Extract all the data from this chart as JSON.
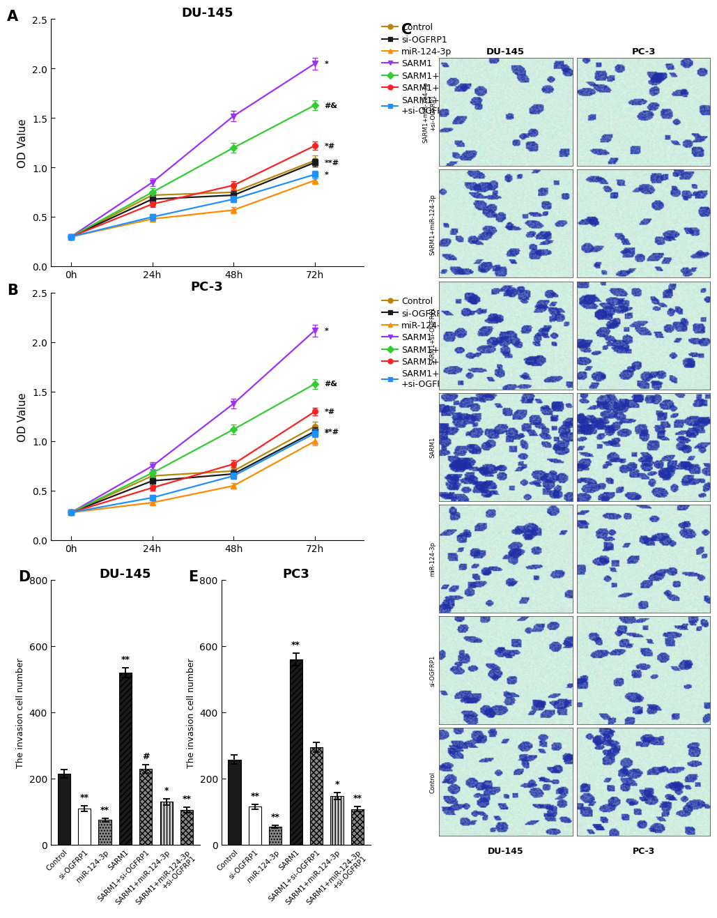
{
  "panel_A_title": "DU-145",
  "panel_B_title": "PC-3",
  "panel_D_title": "DU-145",
  "panel_E_title": "PC3",
  "timepoints": [
    0,
    1,
    2,
    3
  ],
  "time_labels": [
    "0h",
    "24h",
    "48h",
    "72h"
  ],
  "legend_labels": [
    "Control",
    "si-OGFRP1",
    "miR-124-3p",
    "SARM1",
    "SARM1+si-OGFRP1",
    "SARM1+miR-124-3p",
    "SARM1+miR-124-3p\n+si-OGFRP1"
  ],
  "series_colors": [
    "#B8860B",
    "#1a1a1a",
    "#FF8C00",
    "#9B30FF",
    "#32CD32",
    "#FF2020",
    "#1E90FF"
  ],
  "series_markers": [
    "o",
    "s",
    "^",
    "v",
    "D",
    "o",
    "s"
  ],
  "A_data": [
    [
      0.3,
      0.72,
      0.75,
      1.07
    ],
    [
      0.3,
      0.68,
      0.72,
      1.05
    ],
    [
      0.3,
      0.48,
      0.57,
      0.87
    ],
    [
      0.3,
      0.85,
      1.52,
      2.05
    ],
    [
      0.3,
      0.75,
      1.2,
      1.63
    ],
    [
      0.3,
      0.63,
      0.82,
      1.22
    ],
    [
      0.3,
      0.5,
      0.68,
      0.93
    ]
  ],
  "A_errors": [
    [
      0.02,
      0.04,
      0.04,
      0.05
    ],
    [
      0.02,
      0.04,
      0.04,
      0.04
    ],
    [
      0.02,
      0.03,
      0.03,
      0.04
    ],
    [
      0.02,
      0.04,
      0.05,
      0.06
    ],
    [
      0.02,
      0.04,
      0.05,
      0.05
    ],
    [
      0.02,
      0.03,
      0.04,
      0.04
    ],
    [
      0.02,
      0.03,
      0.03,
      0.04
    ]
  ],
  "B_data": [
    [
      0.28,
      0.65,
      0.7,
      1.15
    ],
    [
      0.28,
      0.6,
      0.67,
      1.1
    ],
    [
      0.28,
      0.38,
      0.55,
      1.0
    ],
    [
      0.28,
      0.75,
      1.38,
      2.12
    ],
    [
      0.28,
      0.68,
      1.12,
      1.58
    ],
    [
      0.28,
      0.53,
      0.77,
      1.3
    ],
    [
      0.28,
      0.43,
      0.65,
      1.08
    ]
  ],
  "B_errors": [
    [
      0.02,
      0.04,
      0.04,
      0.05
    ],
    [
      0.02,
      0.04,
      0.04,
      0.04
    ],
    [
      0.02,
      0.03,
      0.03,
      0.04
    ],
    [
      0.02,
      0.04,
      0.05,
      0.06
    ],
    [
      0.02,
      0.04,
      0.05,
      0.05
    ],
    [
      0.02,
      0.03,
      0.04,
      0.04
    ],
    [
      0.02,
      0.03,
      0.03,
      0.04
    ]
  ],
  "D_categories": [
    "Control",
    "si-OGFRP1",
    "miR-124-3p",
    "SARM1",
    "SARM1+si-OGFRP1",
    "SARM1+miR-124-3p",
    "SARM1+miR-124-3p\n+si-OGFRP1"
  ],
  "D_values": [
    215,
    110,
    75,
    520,
    230,
    130,
    105
  ],
  "D_errors": [
    12,
    8,
    6,
    15,
    12,
    10,
    8
  ],
  "D_significance": [
    "",
    "**",
    "**",
    "**",
    "#",
    "*",
    "**"
  ],
  "E_values": [
    258,
    115,
    55,
    560,
    295,
    148,
    108
  ],
  "E_errors": [
    14,
    8,
    5,
    18,
    14,
    10,
    7
  ],
  "E_significance": [
    "",
    "**",
    "**",
    "**",
    "",
    "*",
    "**"
  ],
  "bar_facecolors": [
    "#1a1a1a",
    "#ffffff",
    "#888888",
    "#1a1a1a",
    "#888888",
    "#cccccc",
    "#888888"
  ],
  "bar_hatches": [
    "",
    "",
    "....",
    "////",
    "xxxx",
    "||||",
    "...."
  ],
  "ylabel_line": "OD Value",
  "ylabel_bar": "The invasion cell number",
  "background_color": "#FFFFFF",
  "panel_label_fontsize": 15,
  "axis_fontsize": 11,
  "title_fontsize": 13,
  "tick_fontsize": 10,
  "legend_fontsize": 9,
  "row_labels_C": [
    "SARM1+miR-124-3p\n+si-OGFRP1",
    "SARM1+miR-124-3p",
    "SARM1+si-OGFRP1",
    "SARM1",
    "miR-124-3p",
    "si-OGFRP1",
    "Control"
  ],
  "col_labels_C": [
    "DU-145",
    "PC-3"
  ],
  "cell_density": [
    35,
    55,
    75,
    130,
    45,
    50,
    75
  ],
  "img_bg_r": 0.82,
  "img_bg_g": 0.93,
  "img_bg_b": 0.88,
  "cell_r": 0.12,
  "cell_g": 0.18,
  "cell_b": 0.65
}
